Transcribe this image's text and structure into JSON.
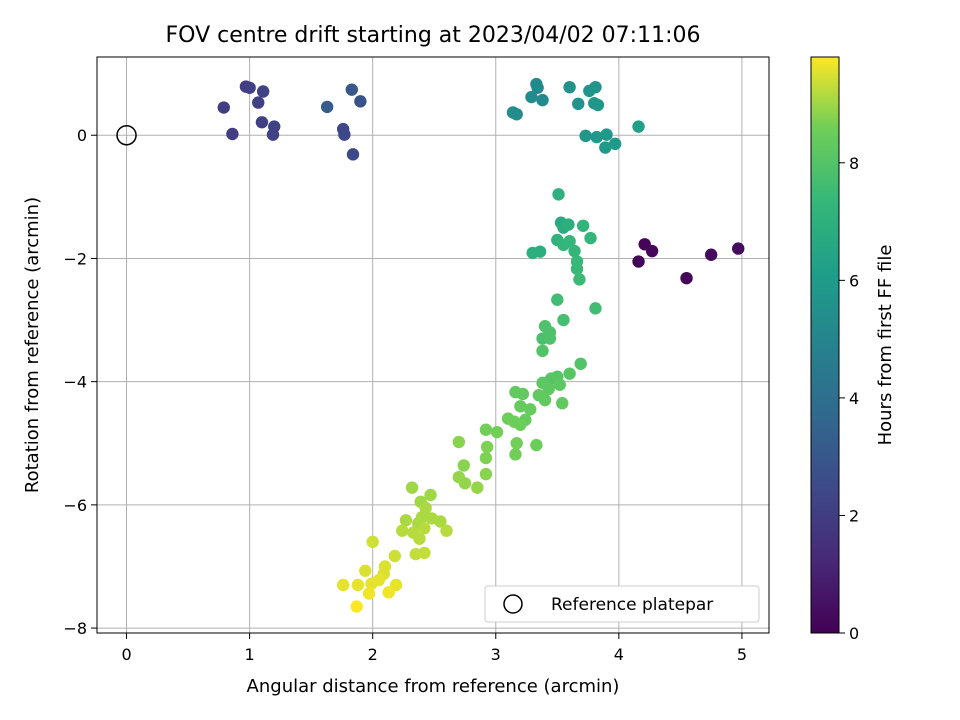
{
  "chart_data": {
    "type": "scatter",
    "title": "FOV centre drift starting at 2023/04/02 07:11:06",
    "xlabel": "Angular distance from reference (arcmin)",
    "ylabel": "Rotation from reference (arcmin)",
    "xlim": [
      -0.24,
      5.22
    ],
    "ylim": [
      -8.08,
      1.27
    ],
    "xticks": [
      0,
      1,
      2,
      3,
      4,
      5
    ],
    "yticks": [
      -8,
      -6,
      -4,
      -2,
      0
    ],
    "grid": true,
    "legend": {
      "position": "lower-right",
      "entries": [
        "Reference platepar"
      ]
    },
    "colorbar": {
      "label": "Hours from first FF file",
      "range": [
        0,
        9.8
      ],
      "ticks": [
        0,
        2,
        4,
        6,
        8
      ],
      "colormap": "viridis"
    },
    "reference_point": {
      "x": 0,
      "y": 0,
      "label": "Reference platepar"
    },
    "series": [
      {
        "points": [
          {
            "x": 4.16,
            "y": -2.05,
            "c": 0.1
          },
          {
            "x": 4.21,
            "y": -1.77,
            "c": 0.1
          },
          {
            "x": 4.27,
            "y": -1.88,
            "c": 0.2
          },
          {
            "x": 4.55,
            "y": -2.32,
            "c": 0.2
          },
          {
            "x": 4.75,
            "y": -1.94,
            "c": 0.3
          },
          {
            "x": 4.97,
            "y": -1.84,
            "c": 0.3
          },
          {
            "x": 0.79,
            "y": 0.45,
            "c": 2.0
          },
          {
            "x": 0.86,
            "y": 0.02,
            "c": 2.0
          },
          {
            "x": 0.97,
            "y": 0.79,
            "c": 2.0
          },
          {
            "x": 1.0,
            "y": 0.77,
            "c": 2.1
          },
          {
            "x": 1.07,
            "y": 0.53,
            "c": 2.1
          },
          {
            "x": 1.1,
            "y": 0.21,
            "c": 2.1
          },
          {
            "x": 1.11,
            "y": 0.71,
            "c": 2.2
          },
          {
            "x": 1.19,
            "y": 0.01,
            "c": 2.2
          },
          {
            "x": 1.2,
            "y": 0.14,
            "c": 2.2
          },
          {
            "x": 1.63,
            "y": 0.46,
            "c": 3.2
          },
          {
            "x": 1.76,
            "y": 0.1,
            "c": 2.4
          },
          {
            "x": 1.77,
            "y": 0.01,
            "c": 2.4
          },
          {
            "x": 1.83,
            "y": 0.74,
            "c": 3.0
          },
          {
            "x": 1.84,
            "y": -0.31,
            "c": 2.5
          },
          {
            "x": 1.9,
            "y": 0.55,
            "c": 2.8
          },
          {
            "x": 3.14,
            "y": 0.37,
            "c": 5.4
          },
          {
            "x": 3.17,
            "y": 0.34,
            "c": 5.4
          },
          {
            "x": 3.29,
            "y": 0.62,
            "c": 5.3
          },
          {
            "x": 3.33,
            "y": 0.83,
            "c": 5.2
          },
          {
            "x": 3.34,
            "y": 0.77,
            "c": 5.2
          },
          {
            "x": 3.38,
            "y": 0.57,
            "c": 5.3
          },
          {
            "x": 3.6,
            "y": 0.78,
            "c": 5.6
          },
          {
            "x": 3.67,
            "y": 0.51,
            "c": 5.7
          },
          {
            "x": 3.73,
            "y": -0.01,
            "c": 5.8
          },
          {
            "x": 3.76,
            "y": 0.72,
            "c": 5.7
          },
          {
            "x": 3.8,
            "y": 0.52,
            "c": 5.8
          },
          {
            "x": 3.81,
            "y": 0.78,
            "c": 5.7
          },
          {
            "x": 3.82,
            "y": -0.03,
            "c": 5.9
          },
          {
            "x": 3.83,
            "y": 0.49,
            "c": 5.8
          },
          {
            "x": 3.89,
            "y": -0.2,
            "c": 6.0
          },
          {
            "x": 3.9,
            "y": 0.01,
            "c": 5.9
          },
          {
            "x": 3.97,
            "y": -0.14,
            "c": 6.0
          },
          {
            "x": 4.16,
            "y": 0.14,
            "c": 6.2
          },
          {
            "x": 3.51,
            "y": -0.96,
            "c": 7.0
          },
          {
            "x": 3.53,
            "y": -1.42,
            "c": 6.6
          },
          {
            "x": 3.55,
            "y": -1.5,
            "c": 6.8
          },
          {
            "x": 3.59,
            "y": -1.45,
            "c": 6.9
          },
          {
            "x": 3.71,
            "y": -1.47,
            "c": 7.2
          },
          {
            "x": 3.77,
            "y": -1.67,
            "c": 7.3
          },
          {
            "x": 3.5,
            "y": -1.7,
            "c": 7.1
          },
          {
            "x": 3.55,
            "y": -1.78,
            "c": 7.2
          },
          {
            "x": 3.6,
            "y": -1.72,
            "c": 7.3
          },
          {
            "x": 3.64,
            "y": -1.88,
            "c": 7.3
          },
          {
            "x": 3.66,
            "y": -2.05,
            "c": 7.4
          },
          {
            "x": 3.66,
            "y": -2.17,
            "c": 7.4
          },
          {
            "x": 3.68,
            "y": -2.34,
            "c": 7.5
          },
          {
            "x": 3.3,
            "y": -1.91,
            "c": 6.9
          },
          {
            "x": 3.36,
            "y": -1.89,
            "c": 6.9
          },
          {
            "x": 3.5,
            "y": -2.67,
            "c": 7.6
          },
          {
            "x": 3.55,
            "y": -3.0,
            "c": 7.7
          },
          {
            "x": 3.81,
            "y": -2.81,
            "c": 7.6
          },
          {
            "x": 3.38,
            "y": -3.3,
            "c": 7.8
          },
          {
            "x": 3.4,
            "y": -3.1,
            "c": 7.9
          },
          {
            "x": 3.44,
            "y": -3.2,
            "c": 7.9
          },
          {
            "x": 3.44,
            "y": -3.3,
            "c": 7.9
          },
          {
            "x": 3.38,
            "y": -3.5,
            "c": 8.0
          },
          {
            "x": 3.69,
            "y": -3.71,
            "c": 8.0
          },
          {
            "x": 3.6,
            "y": -3.87,
            "c": 8.1
          },
          {
            "x": 3.5,
            "y": -3.92,
            "c": 8.1
          },
          {
            "x": 3.45,
            "y": -3.95,
            "c": 8.1
          },
          {
            "x": 3.38,
            "y": -4.02,
            "c": 8.2
          },
          {
            "x": 3.43,
            "y": -4.12,
            "c": 8.2
          },
          {
            "x": 3.52,
            "y": -4.05,
            "c": 8.2
          },
          {
            "x": 3.16,
            "y": -4.17,
            "c": 8.3
          },
          {
            "x": 3.22,
            "y": -4.2,
            "c": 8.3
          },
          {
            "x": 3.35,
            "y": -4.22,
            "c": 8.3
          },
          {
            "x": 3.4,
            "y": -4.3,
            "c": 8.3
          },
          {
            "x": 3.54,
            "y": -4.35,
            "c": 8.3
          },
          {
            "x": 3.2,
            "y": -4.4,
            "c": 8.4
          },
          {
            "x": 3.28,
            "y": -4.45,
            "c": 8.4
          },
          {
            "x": 3.24,
            "y": -4.62,
            "c": 8.4
          },
          {
            "x": 3.1,
            "y": -4.6,
            "c": 8.5
          },
          {
            "x": 3.15,
            "y": -4.65,
            "c": 8.5
          },
          {
            "x": 3.2,
            "y": -4.7,
            "c": 8.5
          },
          {
            "x": 3.01,
            "y": -4.82,
            "c": 8.6
          },
          {
            "x": 2.92,
            "y": -4.78,
            "c": 8.6
          },
          {
            "x": 3.17,
            "y": -5.0,
            "c": 8.6
          },
          {
            "x": 3.33,
            "y": -5.03,
            "c": 8.5
          },
          {
            "x": 2.93,
            "y": -5.06,
            "c": 8.7
          },
          {
            "x": 2.92,
            "y": -5.24,
            "c": 8.7
          },
          {
            "x": 3.16,
            "y": -5.18,
            "c": 8.6
          },
          {
            "x": 2.7,
            "y": -4.98,
            "c": 8.8
          },
          {
            "x": 2.74,
            "y": -5.36,
            "c": 8.8
          },
          {
            "x": 2.92,
            "y": -5.5,
            "c": 8.8
          },
          {
            "x": 2.7,
            "y": -5.55,
            "c": 8.9
          },
          {
            "x": 2.75,
            "y": -5.65,
            "c": 8.9
          },
          {
            "x": 2.85,
            "y": -5.72,
            "c": 8.9
          },
          {
            "x": 2.32,
            "y": -5.72,
            "c": 9.0
          },
          {
            "x": 2.47,
            "y": -5.84,
            "c": 9.0
          },
          {
            "x": 2.39,
            "y": -5.95,
            "c": 9.0
          },
          {
            "x": 2.43,
            "y": -6.05,
            "c": 9.1
          },
          {
            "x": 2.4,
            "y": -6.2,
            "c": 9.1
          },
          {
            "x": 2.48,
            "y": -6.22,
            "c": 9.1
          },
          {
            "x": 2.27,
            "y": -6.25,
            "c": 9.1
          },
          {
            "x": 2.37,
            "y": -6.3,
            "c": 9.1
          },
          {
            "x": 2.55,
            "y": -6.27,
            "c": 9.1
          },
          {
            "x": 2.42,
            "y": -6.38,
            "c": 9.2
          },
          {
            "x": 2.6,
            "y": -6.42,
            "c": 9.2
          },
          {
            "x": 2.24,
            "y": -6.42,
            "c": 9.2
          },
          {
            "x": 2.33,
            "y": -6.45,
            "c": 9.2
          },
          {
            "x": 2.38,
            "y": -6.55,
            "c": 9.2
          },
          {
            "x": 2.0,
            "y": -6.6,
            "c": 9.4
          },
          {
            "x": 2.35,
            "y": -6.8,
            "c": 9.3
          },
          {
            "x": 2.42,
            "y": -6.78,
            "c": 9.3
          },
          {
            "x": 2.18,
            "y": -6.83,
            "c": 9.4
          },
          {
            "x": 2.1,
            "y": -7.0,
            "c": 9.5
          },
          {
            "x": 1.94,
            "y": -7.07,
            "c": 9.5
          },
          {
            "x": 2.09,
            "y": -7.12,
            "c": 9.5
          },
          {
            "x": 2.05,
            "y": -7.22,
            "c": 9.6
          },
          {
            "x": 1.99,
            "y": -7.28,
            "c": 9.6
          },
          {
            "x": 1.76,
            "y": -7.3,
            "c": 9.6
          },
          {
            "x": 1.88,
            "y": -7.3,
            "c": 9.6
          },
          {
            "x": 2.19,
            "y": -7.3,
            "c": 9.6
          },
          {
            "x": 2.13,
            "y": -7.42,
            "c": 9.7
          },
          {
            "x": 1.97,
            "y": -7.44,
            "c": 9.7
          },
          {
            "x": 1.87,
            "y": -7.65,
            "c": 9.8
          }
        ]
      }
    ]
  }
}
